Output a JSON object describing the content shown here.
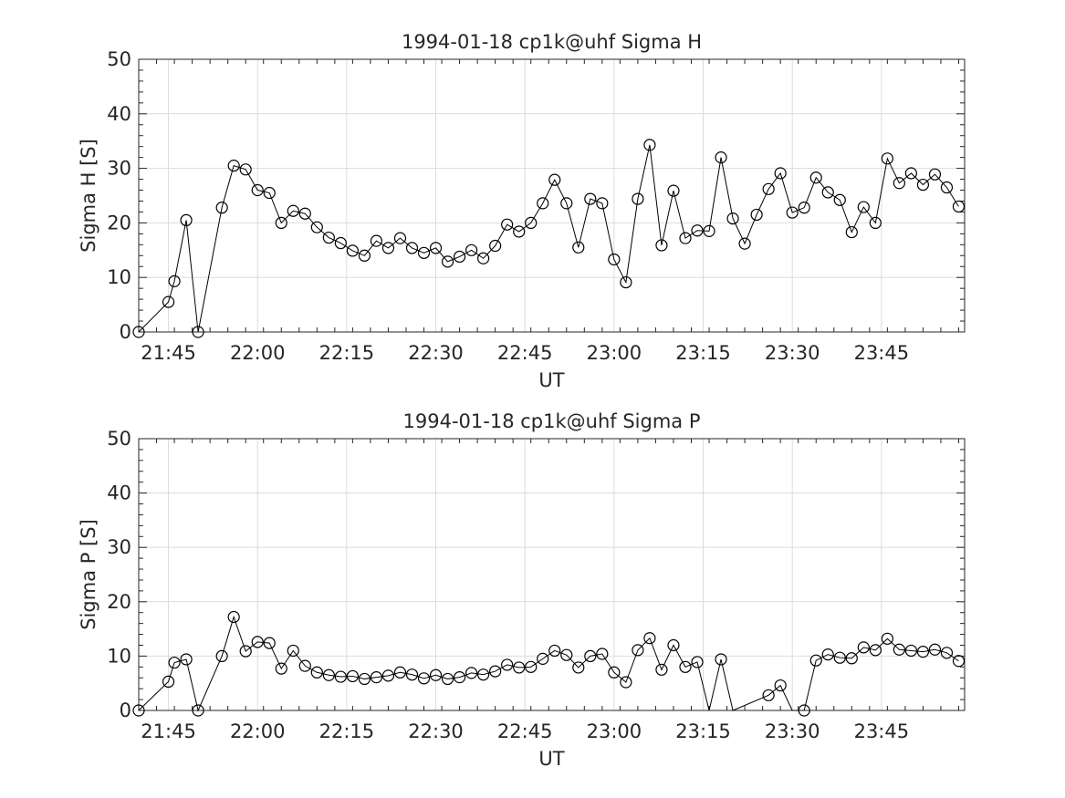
{
  "chart_data": [
    {
      "type": "line",
      "title": "1994-01-18  cp1k@uhf Sigma H",
      "xlabel": "UT",
      "ylabel": "Sigma H [S]",
      "xlim": [
        "21:40",
        "23:59"
      ],
      "ylim": [
        0,
        50
      ],
      "yticks": [
        0,
        10,
        20,
        30,
        40,
        50
      ],
      "xticks": [
        "21:45",
        "22:00",
        "22:15",
        "22:30",
        "22:45",
        "23:00",
        "23:15",
        "23:30",
        "23:45"
      ],
      "grid": true,
      "marker": "open-circle",
      "series": [
        {
          "points": [
            [
              "21:40",
              0
            ],
            [
              "21:45",
              5.5
            ],
            [
              "21:46",
              9.3
            ],
            [
              "21:48",
              20.5
            ],
            [
              "21:50",
              0
            ],
            [
              "21:54",
              22.8
            ],
            [
              "21:56",
              30.5
            ],
            [
              "21:58",
              29.8
            ],
            [
              "22:00",
              26
            ],
            [
              "22:02",
              25.5
            ],
            [
              "22:04",
              20
            ],
            [
              "22:06",
              22.2
            ],
            [
              "22:08",
              21.7
            ],
            [
              "22:10",
              19.2
            ],
            [
              "22:12",
              17.3
            ],
            [
              "22:14",
              16.3
            ],
            [
              "22:16",
              14.9
            ],
            [
              "22:18",
              14
            ],
            [
              "22:20",
              16.7
            ],
            [
              "22:22",
              15.4
            ],
            [
              "22:24",
              17.2
            ],
            [
              "22:26",
              15.4
            ],
            [
              "22:28",
              14.5
            ],
            [
              "22:30",
              15.4
            ],
            [
              "22:32",
              12.9
            ],
            [
              "22:34",
              13.8
            ],
            [
              "22:36",
              15
            ],
            [
              "22:38",
              13.5
            ],
            [
              "22:40",
              15.8
            ],
            [
              "22:42",
              19.7
            ],
            [
              "22:44",
              18.4
            ],
            [
              "22:46",
              20
            ],
            [
              "22:48",
              23.6
            ],
            [
              "22:50",
              27.9
            ],
            [
              "22:52",
              23.6
            ],
            [
              "22:54",
              15.5
            ],
            [
              "22:56",
              24.4
            ],
            [
              "22:58",
              23.6
            ],
            [
              "23:00",
              13.3
            ],
            [
              "23:02",
              9.1
            ],
            [
              "23:04",
              24.4
            ],
            [
              "23:06",
              34.3
            ],
            [
              "23:08",
              15.9
            ],
            [
              "23:10",
              25.9
            ],
            [
              "23:12",
              17.2
            ],
            [
              "23:14",
              18.6
            ],
            [
              "23:16",
              18.5
            ],
            [
              "23:18",
              32
            ],
            [
              "23:20",
              20.8
            ],
            [
              "23:22",
              16.2
            ],
            [
              "23:24",
              21.5
            ],
            [
              "23:26",
              26.2
            ],
            [
              "23:28",
              29.1
            ],
            [
              "23:30",
              21.9
            ],
            [
              "23:32",
              22.8
            ],
            [
              "23:34",
              28.3
            ],
            [
              "23:36",
              25.6
            ],
            [
              "23:38",
              24.2
            ],
            [
              "23:40",
              18.3
            ],
            [
              "23:42",
              22.9
            ],
            [
              "23:44",
              20
            ],
            [
              "23:46",
              31.8
            ],
            [
              "23:48",
              27.3
            ],
            [
              "23:50",
              29.1
            ],
            [
              "23:52",
              27
            ],
            [
              "23:54",
              28.9
            ],
            [
              "23:56",
              26.5
            ],
            [
              "23:58",
              23
            ]
          ]
        }
      ]
    },
    {
      "type": "line",
      "title": "1994-01-18  cp1k@uhf Sigma P",
      "xlabel": "UT",
      "ylabel": "Sigma P [S]",
      "xlim": [
        "21:40",
        "23:59"
      ],
      "ylim": [
        0,
        50
      ],
      "yticks": [
        0,
        10,
        20,
        30,
        40,
        50
      ],
      "xticks": [
        "21:45",
        "22:00",
        "22:15",
        "22:30",
        "22:45",
        "23:00",
        "23:15",
        "23:30",
        "23:45"
      ],
      "grid": true,
      "marker": "open-circle",
      "series": [
        {
          "points": [
            [
              "21:40",
              0
            ],
            [
              "21:45",
              5.3
            ],
            [
              "21:46",
              8.8
            ],
            [
              "21:48",
              9.4
            ],
            [
              "21:50",
              0
            ],
            [
              "21:54",
              10
            ],
            [
              "21:56",
              17.2
            ],
            [
              "21:58",
              10.9
            ],
            [
              "22:00",
              12.6
            ],
            [
              "22:02",
              12.4
            ],
            [
              "22:04",
              7.7
            ],
            [
              "22:06",
              11
            ],
            [
              "22:08",
              8.2
            ],
            [
              "22:10",
              7
            ],
            [
              "22:12",
              6.5
            ],
            [
              "22:14",
              6.2
            ],
            [
              "22:16",
              6.3
            ],
            [
              "22:18",
              5.8
            ],
            [
              "22:20",
              6.1
            ],
            [
              "22:22",
              6.4
            ],
            [
              "22:24",
              7
            ],
            [
              "22:26",
              6.6
            ],
            [
              "22:28",
              5.9
            ],
            [
              "22:30",
              6.5
            ],
            [
              "22:32",
              5.8
            ],
            [
              "22:34",
              6.1
            ],
            [
              "22:36",
              6.9
            ],
            [
              "22:38",
              6.6
            ],
            [
              "22:40",
              7.2
            ],
            [
              "22:42",
              8.4
            ],
            [
              "22:44",
              7.9
            ],
            [
              "22:46",
              8
            ],
            [
              "22:48",
              9.5
            ],
            [
              "22:50",
              11
            ],
            [
              "22:52",
              10.2
            ],
            [
              "22:54",
              7.9
            ],
            [
              "22:56",
              10
            ],
            [
              "22:58",
              10.4
            ],
            [
              "23:00",
              7
            ],
            [
              "23:02",
              5.2
            ],
            [
              "23:04",
              11.1
            ],
            [
              "23:06",
              13.3
            ],
            [
              "23:08",
              7.5
            ],
            [
              "23:10",
              12
            ],
            [
              "23:12",
              8
            ],
            [
              "23:14",
              8.9
            ],
            [
              "23:16",
              0
            ],
            [
              "23:18",
              9.4
            ],
            [
              "23:20",
              0
            ],
            [
              "23:26",
              2.8
            ],
            [
              "23:28",
              4.6
            ],
            [
              "23:30",
              0
            ],
            [
              "23:32",
              0
            ],
            [
              "23:34",
              9.2
            ],
            [
              "23:36",
              10.3
            ],
            [
              "23:38",
              9.7
            ],
            [
              "23:40",
              9.6
            ],
            [
              "23:42",
              11.6
            ],
            [
              "23:44",
              11.1
            ],
            [
              "23:46",
              13.2
            ],
            [
              "23:48",
              11.2
            ],
            [
              "23:50",
              11
            ],
            [
              "23:52",
              10.8
            ],
            [
              "23:54",
              11.2
            ],
            [
              "23:56",
              10.6
            ],
            [
              "23:58",
              9.1
            ]
          ],
          "hidden_markers": [
            "23:16",
            "23:20",
            "23:30"
          ]
        }
      ]
    }
  ]
}
